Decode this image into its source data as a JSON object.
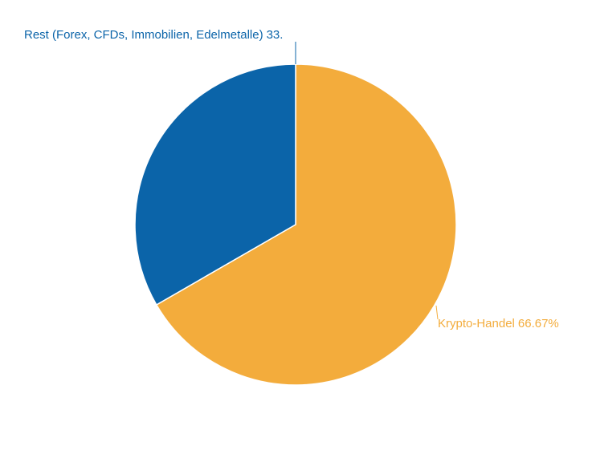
{
  "chart_data": {
    "type": "pie",
    "categories": [
      "Krypto-Handel",
      "Rest (Forex, CFDs, Immobilien, Edelmetalle)"
    ],
    "values": [
      66.67,
      33.33
    ],
    "value_labels": [
      "66.67%",
      "33."
    ],
    "colors": [
      "#f3ac3c",
      "#0b64a9"
    ]
  }
}
